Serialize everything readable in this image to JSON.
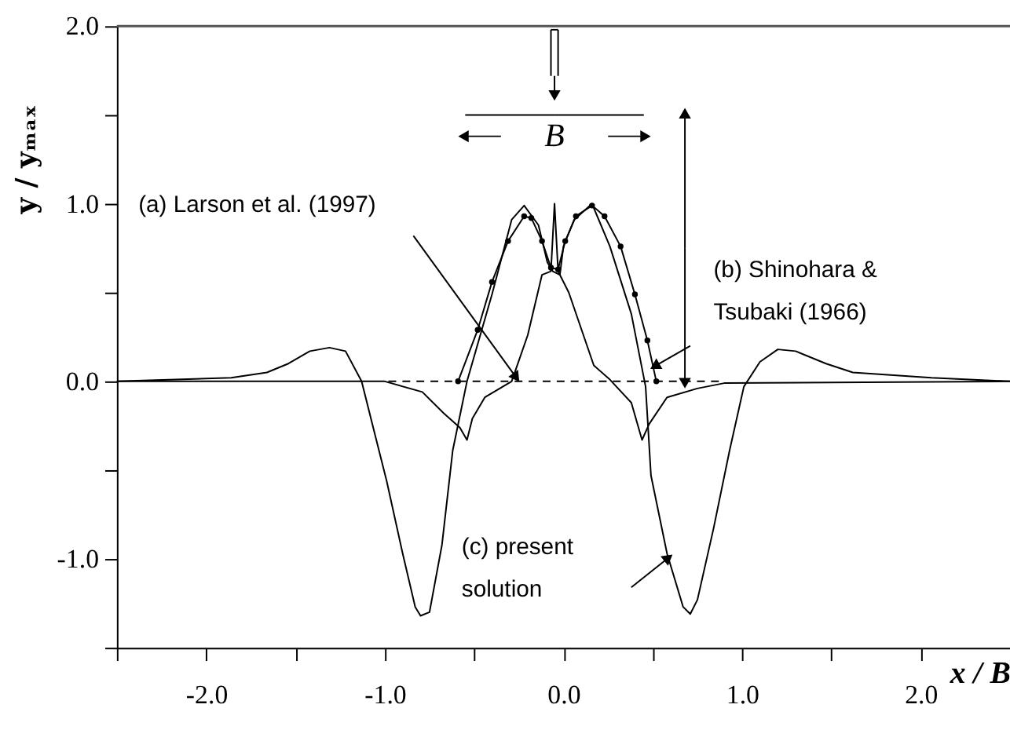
{
  "chart_data": {
    "type": "line",
    "xlabel": "x / B",
    "ylabel": "y / yₘₐₓ",
    "xlim": [
      -2.5,
      2.5
    ],
    "ylim": [
      -1.5,
      2.0
    ],
    "xticks": [
      {
        "value": -2.5,
        "label": null
      },
      {
        "value": -2,
        "label": "-2.0"
      },
      {
        "value": -1.5,
        "label": null
      },
      {
        "value": -1,
        "label": "-1.0"
      },
      {
        "value": -0.5,
        "label": null
      },
      {
        "value": 0,
        "label": "0.0"
      },
      {
        "value": 0.5,
        "label": null
      },
      {
        "value": 1,
        "label": "1.0"
      },
      {
        "value": 1.5,
        "label": null
      },
      {
        "value": 2,
        "label": "2.0"
      },
      {
        "value": 2.5,
        "label": null
      }
    ],
    "yticks": [
      {
        "value": -1.5,
        "label": null
      },
      {
        "value": -1,
        "label": "-1.0"
      },
      {
        "value": -0.5,
        "label": null
      },
      {
        "value": 0,
        "label": "0.0"
      },
      {
        "value": 0.5,
        "label": null
      },
      {
        "value": 1,
        "label": "1.0"
      },
      {
        "value": 1.5,
        "label": null
      },
      {
        "value": 2,
        "label": "2.0"
      }
    ],
    "grid": false,
    "series": [
      {
        "color": "#000000",
        "marker": "none",
        "line_style": "solid",
        "x": [
          -2.5,
          -1.86,
          -1.66,
          -1.54,
          -1.42,
          -1.31,
          -1.22,
          -1.13,
          -1.07,
          -0.99,
          -0.9,
          -0.83,
          -0.8,
          -0.75,
          -0.68,
          -0.62,
          -0.54,
          -0.4,
          -0.29,
          -0.22,
          -0.14,
          -0.09,
          -0.06,
          -0.02,
          0.0,
          0.06,
          0.16,
          0.26,
          0.38,
          0.46,
          0.49,
          0.58,
          0.67,
          0.71,
          0.75,
          0.84,
          0.93,
          1.01,
          1.1,
          1.2,
          1.3,
          1.47,
          1.62,
          2.06,
          2.5
        ],
        "values": [
          0,
          0.02,
          0.05,
          0.1,
          0.17,
          0.19,
          0.17,
          0,
          -0.24,
          -0.56,
          -0.97,
          -1.27,
          -1.32,
          -1.3,
          -0.92,
          -0.39,
          0,
          0.49,
          0.91,
          0.99,
          0.88,
          0.67,
          0.62,
          0.6,
          0.76,
          0.91,
          1.0,
          0.76,
          0.38,
          -0.03,
          -0.53,
          -0.97,
          -1.27,
          -1.31,
          -1.23,
          -0.83,
          -0.39,
          -0.03,
          0.11,
          0.18,
          0.17,
          0.1,
          0.05,
          0.02,
          0
        ]
      },
      {
        "color": "#000000",
        "marker": "none",
        "line_style": "solid",
        "x": [
          -2.5,
          -1.0,
          -0.79,
          -0.67,
          -0.58,
          -0.54,
          -0.51,
          -0.44,
          -0.29,
          -0.2,
          -0.12,
          -0.07,
          -0.05,
          -0.03,
          0.03,
          0.17,
          0.26,
          0.38,
          0.44,
          0.48,
          0.58,
          0.75,
          0.9,
          2.5
        ],
        "values": [
          0,
          0,
          -0.06,
          -0.18,
          -0.26,
          -0.33,
          -0.21,
          -0.09,
          0,
          0.26,
          0.6,
          0.62,
          1.0,
          0.62,
          0.5,
          0.09,
          0.01,
          -0.12,
          -0.33,
          -0.24,
          -0.09,
          -0.04,
          -0.01,
          0
        ]
      },
      {
        "color": "#000000",
        "marker": "circle",
        "line_style": "solid",
        "x": [
          -0.59,
          -0.48,
          -0.4,
          -0.31,
          -0.22,
          -0.18,
          -0.12,
          -0.07,
          -0.03,
          0.01,
          0.07,
          0.16,
          0.23,
          0.32,
          0.4,
          0.47,
          0.52
        ],
        "values": [
          0,
          0.29,
          0.56,
          0.79,
          0.93,
          0.92,
          0.79,
          0.64,
          0.63,
          0.79,
          0.93,
          0.99,
          0.93,
          0.76,
          0.49,
          0.23,
          0
        ]
      },
      {
        "color": "#000000",
        "marker": "none",
        "line_style": "dashed",
        "x": [
          -0.98,
          0.87
        ],
        "values": [
          0,
          0
        ]
      }
    ],
    "annotations": [
      "(a) Larson et al. (1997)",
      "(b) Shinohara & Tsubaki (1966)",
      "(c) present solution",
      "B"
    ]
  }
}
